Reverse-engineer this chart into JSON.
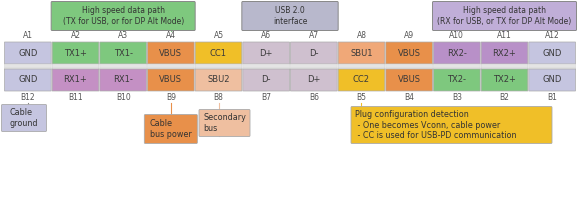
{
  "fig_width": 5.8,
  "fig_height": 2.21,
  "dpi": 100,
  "bg_color": "#ffffff",
  "top_row_labels": [
    "A1",
    "A2",
    "A3",
    "A4",
    "A5",
    "A6",
    "A7",
    "A8",
    "A9",
    "A10",
    "A11",
    "A12"
  ],
  "bot_row_labels": [
    "B12",
    "B11",
    "B10",
    "B9",
    "B8",
    "B7",
    "B6",
    "B5",
    "B4",
    "B3",
    "B2",
    "B1"
  ],
  "top_row_cells": [
    "GND",
    "TX1+",
    "TX1-",
    "VBUS",
    "CC1",
    "D+",
    "D-",
    "SBU1",
    "VBUS",
    "RX2-",
    "RX2+",
    "GND"
  ],
  "bot_row_cells": [
    "GND",
    "RX1+",
    "RX1-",
    "VBUS",
    "SBU2",
    "D-",
    "D+",
    "CC2",
    "VBUS",
    "TX2-",
    "TX2+",
    "GND"
  ],
  "top_row_colors": [
    "#c5c5e0",
    "#7ec87e",
    "#7ec87e",
    "#e8904a",
    "#f0bf28",
    "#cfc0cf",
    "#cfc0cf",
    "#f0a878",
    "#e8904a",
    "#b890c8",
    "#b890c8",
    "#c5c5e0"
  ],
  "bot_row_colors": [
    "#c5c5e0",
    "#c490c4",
    "#c490c4",
    "#e8904a",
    "#efbfa0",
    "#cfc0cf",
    "#cfc0cf",
    "#f0bf28",
    "#e8904a",
    "#7ec87e",
    "#7ec87e",
    "#c5c5e0"
  ],
  "spacer_color": "#e4e4e4",
  "spacer2_color": "#f0f0f0",
  "header_left_text": "High speed data path\n(TX for USB, or for DP Alt Mode)",
  "header_left_color": "#7ec87e",
  "header_mid_text": "USB 2.0\ninterface",
  "header_mid_color": "#b8b8cc",
  "header_right_text": "High speed data path\n(RX for USB, or TX for DP Alt Mode)",
  "header_right_color": "#c0aed8",
  "note_cable_ground_text": "Cable\nground",
  "note_cable_ground_color": "#c5c5e0",
  "note_cable_bus_text": "Cable\nbus power",
  "note_cable_bus_color": "#e8904a",
  "note_secondary_text": "Secondary\nbus",
  "note_secondary_color": "#efbfa0",
  "note_plug_text": "Plug configuration detection\n - One becomes Vconn, cable power\n - CC is used for USB-PD communication",
  "note_plug_color": "#f0bf28",
  "cell_text_color": "#3a3a3a",
  "label_text_color": "#555555",
  "header_text_color": "#333333",
  "note_text_color": "#333333"
}
